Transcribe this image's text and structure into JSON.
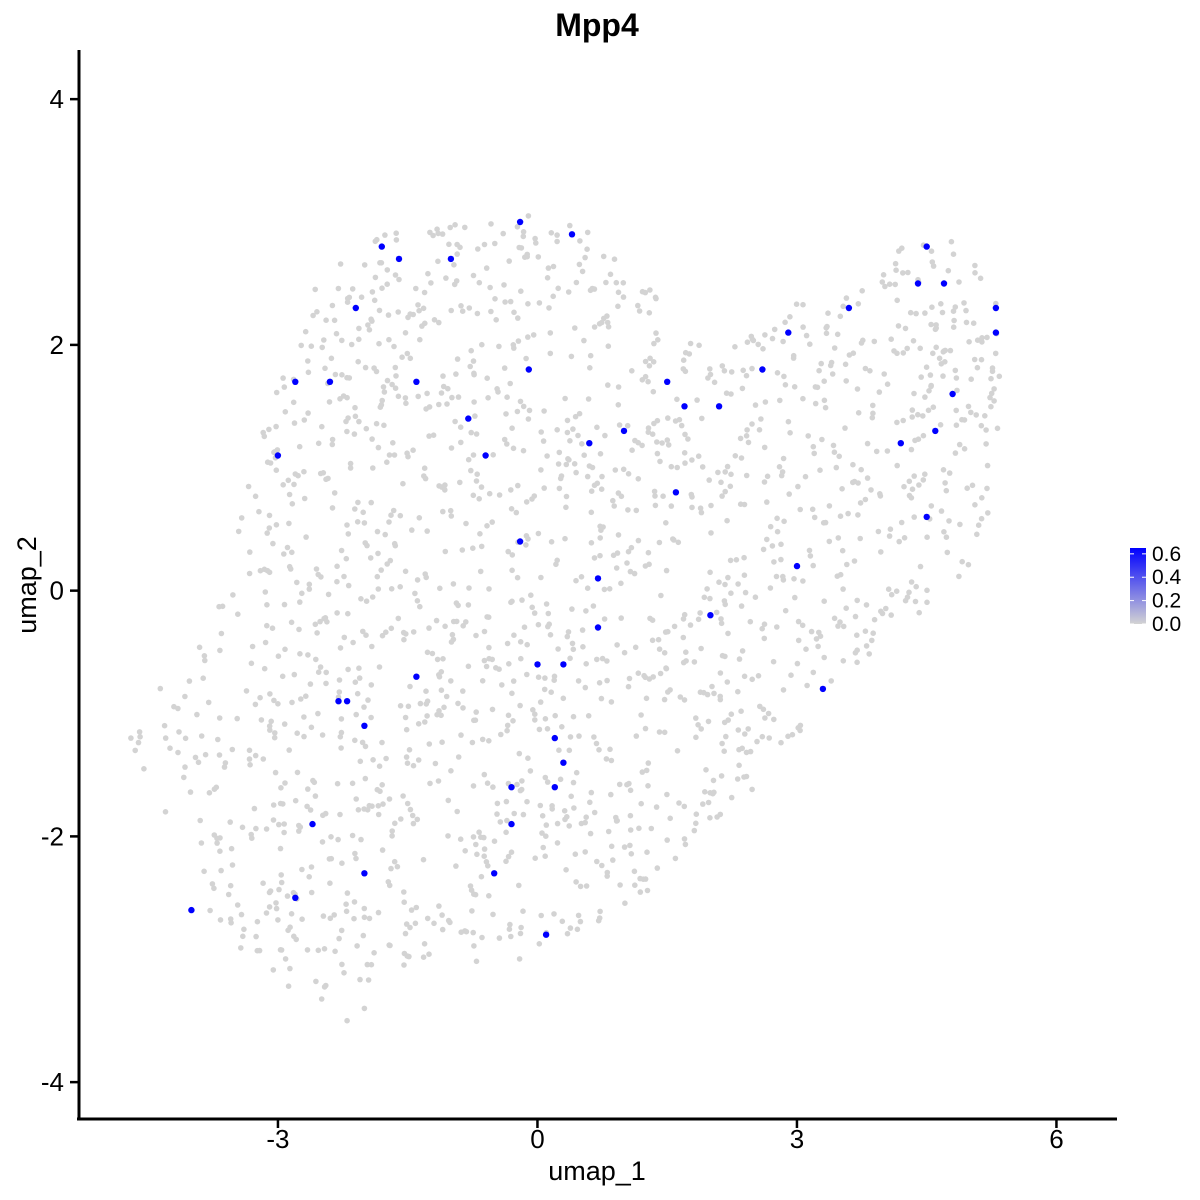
{
  "chart_data": {
    "type": "scatter",
    "title": "Mpp4",
    "xlabel": "umap_1",
    "ylabel": "umap_2",
    "xlim": [
      -5.3,
      6.7
    ],
    "ylim": [
      -4.3,
      4.4
    ],
    "x_ticks": [
      -3,
      0,
      3,
      6
    ],
    "x_tick_labels": [
      "-3",
      "0",
      "3",
      "6"
    ],
    "y_ticks": [
      -4,
      -2,
      0,
      2,
      4
    ],
    "y_tick_labels": [
      "-4",
      "-2",
      "0",
      "2",
      "4"
    ],
    "grid": false,
    "legend": {
      "type": "colorbar",
      "placement": "right",
      "ticks": [
        0.0,
        0.2,
        0.4,
        0.6
      ],
      "tick_labels": [
        "0.0",
        "0.2",
        "0.4",
        "0.6"
      ],
      "range": [
        0.0,
        0.65
      ],
      "color_low": "#d3d3d3",
      "color_high": "#0000ff"
    },
    "colors": {
      "background_point": "#d3d3d3",
      "expressed_point": "#0000ff"
    },
    "series": [
      {
        "values_role": "expressed_cells",
        "expression": 0.65,
        "points": [
          [
            -0.2,
            3.0
          ],
          [
            0.4,
            2.9
          ],
          [
            -1.8,
            2.8
          ],
          [
            -1.6,
            2.7
          ],
          [
            -1.0,
            2.7
          ],
          [
            -2.1,
            2.3
          ],
          [
            -2.8,
            1.7
          ],
          [
            -2.4,
            1.7
          ],
          [
            -1.4,
            1.7
          ],
          [
            -0.1,
            1.8
          ],
          [
            -0.8,
            1.4
          ],
          [
            -0.6,
            1.1
          ],
          [
            -3.0,
            1.1
          ],
          [
            0.6,
            1.2
          ],
          [
            1.0,
            1.3
          ],
          [
            1.5,
            1.7
          ],
          [
            1.7,
            1.5
          ],
          [
            2.1,
            1.5
          ],
          [
            2.6,
            1.8
          ],
          [
            2.9,
            2.1
          ],
          [
            3.6,
            2.3
          ],
          [
            4.4,
            2.5
          ],
          [
            4.5,
            2.8
          ],
          [
            4.7,
            2.5
          ],
          [
            5.3,
            2.3
          ],
          [
            5.3,
            2.1
          ],
          [
            4.8,
            1.6
          ],
          [
            4.6,
            1.3
          ],
          [
            4.2,
            1.2
          ],
          [
            4.5,
            0.6
          ],
          [
            1.6,
            0.8
          ],
          [
            -0.2,
            0.4
          ],
          [
            0.7,
            0.1
          ],
          [
            3.0,
            0.2
          ],
          [
            2.0,
            -0.2
          ],
          [
            0.7,
            -0.3
          ],
          [
            0.0,
            -0.6
          ],
          [
            0.3,
            -0.6
          ],
          [
            -1.4,
            -0.7
          ],
          [
            -2.3,
            -0.9
          ],
          [
            -2.2,
            -0.9
          ],
          [
            -2.0,
            -1.1
          ],
          [
            0.2,
            -1.2
          ],
          [
            0.3,
            -1.4
          ],
          [
            0.2,
            -1.6
          ],
          [
            -0.3,
            -1.6
          ],
          [
            -0.3,
            -1.9
          ],
          [
            3.3,
            -0.8
          ],
          [
            -2.6,
            -1.9
          ],
          [
            -0.5,
            -2.3
          ],
          [
            -2.0,
            -2.3
          ],
          [
            -2.8,
            -2.5
          ],
          [
            -4.0,
            -2.6
          ],
          [
            0.1,
            -2.8
          ]
        ]
      }
    ],
    "background_cell_count": 1800
  }
}
